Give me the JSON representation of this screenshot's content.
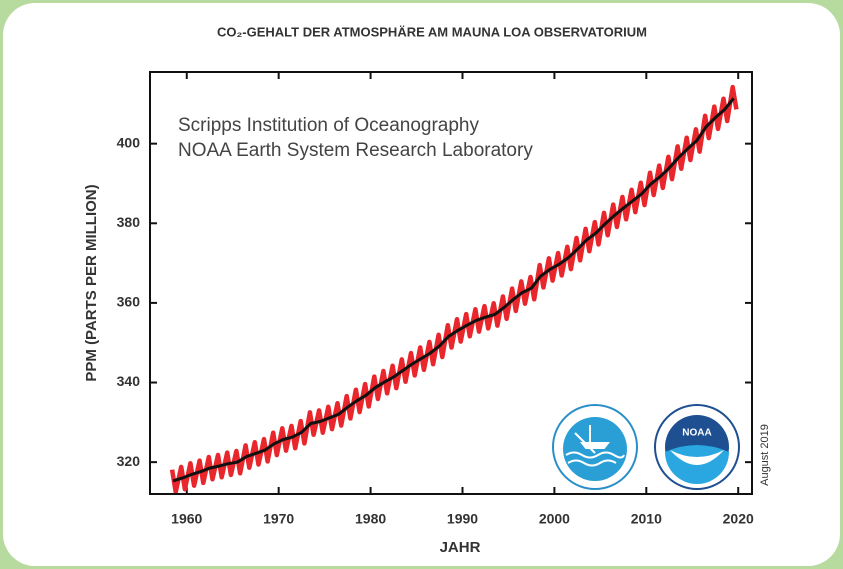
{
  "chart_data": {
    "type": "line",
    "title": "CO₂-GEHALT DER ATMOSPHÄRE AM MAUNA LOA OBSERVATORIUM",
    "x_label": "JAHR",
    "y_label": "PPM (PARTS PER MILLION)",
    "annotations": [
      "Scripps Institution of Oceanography",
      "NOAA Earth System Research Laboratory",
      "August 2019",
      "NOAA"
    ],
    "xlim": [
      1956,
      2021.5
    ],
    "ylim": [
      312,
      418
    ],
    "xticks": [
      1960,
      1970,
      1980,
      1990,
      2000,
      2010,
      2020
    ],
    "yticks": [
      320,
      340,
      360,
      380,
      400
    ],
    "series": [
      {
        "color": "#e8262b",
        "x": [
          1958.4,
          1958.8,
          1959.4,
          1959.8,
          1960.4,
          1960.8,
          1961.4,
          1961.8,
          1962.4,
          1962.8,
          1963.4,
          1963.8,
          1964.4,
          1964.8,
          1965.4,
          1965.8,
          1966.4,
          1966.8,
          1967.4,
          1967.8,
          1968.4,
          1968.8,
          1969.4,
          1969.8,
          1970.4,
          1970.8,
          1971.4,
          1971.8,
          1972.4,
          1972.8,
          1973.4,
          1973.8,
          1974.4,
          1974.8,
          1975.4,
          1975.8,
          1976.4,
          1976.8,
          1977.4,
          1977.8,
          1978.4,
          1978.8,
          1979.4,
          1979.8,
          1980.4,
          1980.8,
          1981.4,
          1981.8,
          1982.4,
          1982.8,
          1983.4,
          1983.8,
          1984.4,
          1984.8,
          1985.4,
          1985.8,
          1986.4,
          1986.8,
          1987.4,
          1987.8,
          1988.4,
          1988.8,
          1989.4,
          1989.8,
          1990.4,
          1990.8,
          1991.4,
          1991.8,
          1992.4,
          1992.8,
          1993.4,
          1993.8,
          1994.4,
          1994.8,
          1995.4,
          1995.8,
          1996.4,
          1996.8,
          1997.4,
          1997.8,
          1998.4,
          1998.8,
          1999.4,
          1999.8,
          2000.4,
          2000.8,
          2001.4,
          2001.8,
          2002.4,
          2002.8,
          2003.4,
          2003.8,
          2004.4,
          2004.8,
          2005.4,
          2005.8,
          2006.4,
          2006.8,
          2007.4,
          2007.8,
          2008.4,
          2008.8,
          2009.4,
          2009.8,
          2010.4,
          2010.8,
          2011.4,
          2011.8,
          2012.4,
          2012.8,
          2013.4,
          2013.8,
          2014.4,
          2014.8,
          2015.4,
          2015.8,
          2016.4,
          2016.8,
          2017.4,
          2017.8,
          2018.4,
          2018.8,
          2019.4,
          2019.8
        ],
        "values": [
          318.1,
          312.5,
          318.8,
          313.2,
          319.7,
          314.1,
          320.4,
          314.8,
          321.3,
          315.7,
          321.8,
          316.2,
          322.4,
          316.8,
          322.8,
          317.2,
          324.2,
          318.6,
          325.0,
          319.4,
          325.8,
          320.2,
          327.4,
          321.8,
          328.5,
          322.9,
          329.1,
          323.5,
          330.3,
          324.7,
          332.5,
          326.9,
          333.0,
          327.4,
          333.9,
          328.3,
          334.8,
          329.2,
          336.6,
          331.0,
          338.2,
          332.6,
          339.6,
          334.0,
          341.5,
          335.9,
          342.9,
          337.3,
          344.2,
          338.6,
          345.8,
          340.2,
          347.4,
          341.8,
          348.8,
          343.2,
          350.2,
          344.6,
          352.0,
          346.4,
          354.4,
          348.8,
          355.9,
          350.3,
          357.2,
          351.6,
          358.4,
          352.8,
          359.2,
          353.6,
          359.9,
          354.3,
          361.6,
          356.0,
          363.6,
          358.0,
          365.4,
          359.8,
          366.5,
          360.9,
          369.5,
          363.9,
          371.2,
          365.6,
          372.5,
          366.9,
          374.1,
          368.5,
          376.3,
          370.7,
          378.6,
          373.0,
          380.3,
          374.7,
          382.6,
          377.0,
          384.7,
          379.1,
          386.6,
          381.0,
          388.4,
          382.8,
          390.2,
          384.6,
          392.7,
          387.1,
          394.5,
          388.9,
          396.7,
          391.1,
          399.3,
          393.7,
          401.5,
          395.9,
          403.6,
          398.0,
          407.0,
          401.4,
          409.3,
          403.7,
          411.3,
          405.7,
          414.2,
          408.6
        ]
      },
      {
        "color": "#111111",
        "x": [
          1958.5,
          1959.5,
          1960.5,
          1961.5,
          1962.5,
          1963.5,
          1964.5,
          1965.5,
          1966.5,
          1967.5,
          1968.5,
          1969.5,
          1970.5,
          1971.5,
          1972.5,
          1973.5,
          1974.5,
          1975.5,
          1976.5,
          1977.5,
          1978.5,
          1979.5,
          1980.5,
          1981.5,
          1982.5,
          1983.5,
          1984.5,
          1985.5,
          1986.5,
          1987.5,
          1988.5,
          1989.5,
          1990.5,
          1991.5,
          1992.5,
          1993.5,
          1994.5,
          1995.5,
          1996.5,
          1997.5,
          1998.5,
          1999.5,
          2000.5,
          2001.5,
          2002.5,
          2003.5,
          2004.5,
          2005.5,
          2006.5,
          2007.5,
          2008.5,
          2009.5,
          2010.5,
          2011.5,
          2012.5,
          2013.5,
          2014.5,
          2015.5,
          2016.5,
          2017.5,
          2018.5,
          2019.5
        ],
        "values": [
          315.3,
          316.0,
          316.9,
          317.6,
          318.5,
          319.0,
          319.6,
          320.0,
          321.4,
          322.2,
          323.0,
          324.6,
          325.7,
          326.3,
          327.5,
          329.7,
          330.2,
          331.1,
          332.0,
          333.8,
          335.4,
          336.8,
          338.7,
          340.1,
          341.4,
          343.0,
          344.6,
          346.0,
          347.4,
          349.2,
          351.6,
          353.1,
          354.4,
          355.6,
          356.4,
          357.1,
          358.8,
          360.8,
          362.6,
          363.7,
          366.7,
          368.4,
          369.7,
          371.3,
          373.5,
          375.8,
          377.5,
          379.8,
          381.9,
          383.8,
          385.6,
          387.4,
          389.9,
          391.7,
          393.9,
          396.5,
          398.7,
          400.8,
          404.2,
          406.5,
          408.5,
          411.4
        ]
      }
    ]
  }
}
